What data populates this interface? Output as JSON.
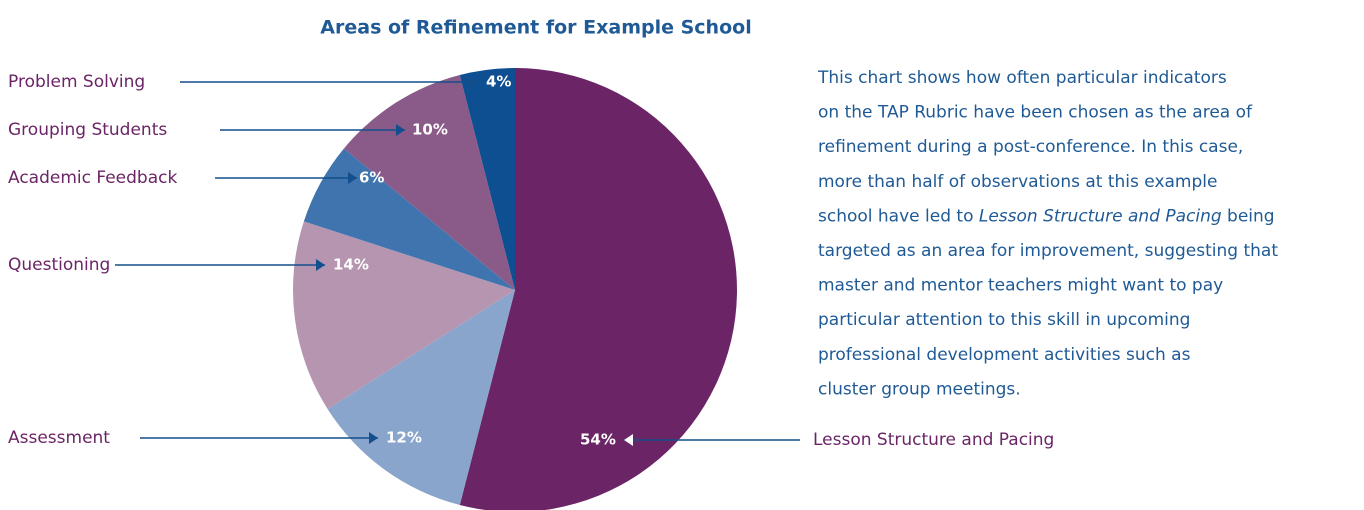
{
  "chart_data": {
    "type": "pie",
    "title": "Areas of Refinement for Example School",
    "categories": [
      "Lesson Structure and Pacing",
      "Assessment",
      "Questioning",
      "Academic Feedback",
      "Grouping Students",
      "Problem Solving"
    ],
    "values": [
      54,
      12,
      14,
      6,
      10,
      4
    ],
    "value_labels": [
      "54%",
      "12%",
      "14%",
      "6%",
      "10%",
      "4%"
    ],
    "colors": [
      "#6b2566",
      "#8aa5cc",
      "#b595b0",
      "#3f74ae",
      "#8a5a89",
      "#0d4f91"
    ],
    "description": [
      [
        {
          "text": "This chart shows how often particular indicators"
        }
      ],
      [
        {
          "text": "on the TAP Rubric have been chosen as the area of"
        }
      ],
      [
        {
          "text": "refinement during a post-conference. In this case,"
        }
      ],
      [
        {
          "text": "more than half of observations at this example"
        }
      ],
      [
        {
          "text": "school have led to "
        },
        {
          "text": "Lesson Structure and Pacing",
          "italic": true
        },
        {
          "text": " being"
        }
      ],
      [
        {
          "text": "targeted as an area for improvement, suggesting that"
        }
      ],
      [
        {
          "text": " master and mentor teachers might want to pay"
        }
      ],
      [
        {
          "text": "particular attention to this skill in upcoming"
        }
      ],
      [
        {
          "text": "professional development activities such as"
        }
      ],
      [
        {
          "text": "cluster group meetings."
        }
      ]
    ]
  }
}
